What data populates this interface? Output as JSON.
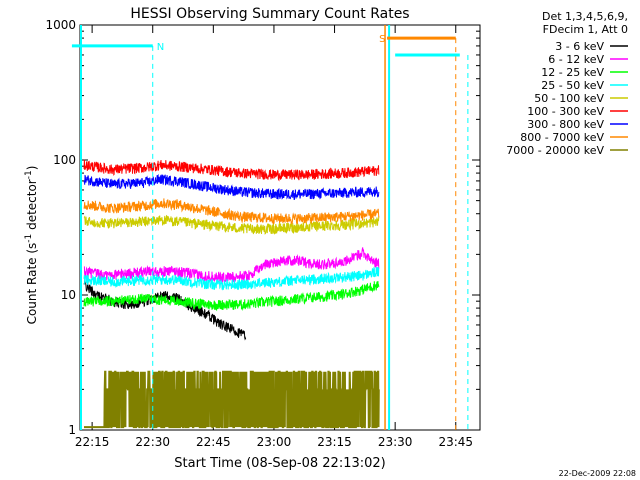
{
  "chart_data": {
    "type": "line",
    "title": "HESSI Observing Summary Count Rates",
    "xlabel": "Start Time (08-Sep-08 22:13:02)",
    "ylabel_main": "Count Rate (s",
    "ylabel_sup1": "-1",
    "ylabel_mid": " detector",
    "ylabel_sup2": "-1",
    "ylabel_end": ")",
    "y_scale": "log",
    "ylim": [
      1,
      1000
    ],
    "xlim_minutes": [
      10,
      60
    ],
    "x_ticks": [
      {
        "label": "22:15",
        "minute": 15
      },
      {
        "label": "22:30",
        "minute": 30
      },
      {
        "label": "22:45",
        "minute": 45
      },
      {
        "label": "23:00",
        "minute": 60
      },
      {
        "label": "23:15",
        "minute": 75
      },
      {
        "label": "23:30",
        "minute": 90
      },
      {
        "label": "23:45",
        "minute": 105
      }
    ],
    "y_ticks": [
      {
        "label": "1",
        "value": 1
      },
      {
        "label": "10",
        "value": 10
      },
      {
        "label": "100",
        "value": 100
      },
      {
        "label": "1000",
        "value": 1000
      }
    ],
    "legend_header": [
      "Det 1,3,4,5,6,9,",
      "FDecim 1, Att 0"
    ],
    "series": [
      {
        "name": "3 - 6 keV",
        "color": "#000000",
        "x": [
          13,
          16,
          20,
          24,
          28,
          32,
          36,
          40,
          44,
          47,
          50,
          53
        ],
        "y": [
          12,
          10,
          9,
          8.5,
          9,
          10,
          9.5,
          8,
          7,
          6,
          5.5,
          5
        ]
      },
      {
        "name": "6 - 12 keV",
        "color": "#ff00ff",
        "x": [
          13,
          18,
          24,
          30,
          36,
          42,
          48,
          54,
          58,
          62,
          66,
          70,
          74,
          78,
          80,
          82,
          84,
          86
        ],
        "y": [
          15,
          14,
          14.5,
          15,
          15,
          14,
          13.5,
          14,
          17,
          18,
          18,
          17,
          17,
          18,
          19,
          21,
          18,
          17
        ]
      },
      {
        "name": "12 - 25 keV",
        "color": "#00ff00",
        "x": [
          13,
          20,
          28,
          36,
          44,
          52,
          60,
          68,
          76,
          82,
          86
        ],
        "y": [
          9,
          9,
          9.5,
          9,
          8.5,
          8.5,
          9,
          9.5,
          10,
          11,
          12
        ]
      },
      {
        "name": "25 - 50 keV",
        "color": "#00ffff",
        "x": [
          13,
          20,
          28,
          36,
          44,
          52,
          60,
          68,
          76,
          82,
          86
        ],
        "y": [
          13,
          12.5,
          13,
          13,
          12,
          12,
          12.5,
          13,
          13.5,
          14,
          15
        ]
      },
      {
        "name": "50 - 100 keV",
        "color": "#cccc00",
        "x": [
          13,
          20,
          28,
          32,
          36,
          44,
          52,
          60,
          68,
          76,
          82,
          86
        ],
        "y": [
          35,
          34,
          35,
          36,
          35,
          33,
          31,
          31,
          32,
          33,
          34,
          35
        ]
      },
      {
        "name": "100 - 300 keV",
        "color": "#ff0000",
        "x": [
          13,
          20,
          28,
          32,
          36,
          44,
          52,
          60,
          68,
          76,
          82,
          86
        ],
        "y": [
          92,
          85,
          88,
          92,
          90,
          85,
          80,
          78,
          78,
          80,
          82,
          84
        ]
      },
      {
        "name": "300 - 800 keV",
        "color": "#0000ff",
        "x": [
          13,
          20,
          28,
          32,
          36,
          44,
          52,
          60,
          68,
          76,
          82,
          86
        ],
        "y": [
          72,
          66,
          68,
          72,
          70,
          63,
          58,
          56,
          56,
          57,
          58,
          59
        ]
      },
      {
        "name": "800 - 7000 keV",
        "color": "#ff8800",
        "x": [
          13,
          20,
          28,
          32,
          36,
          44,
          52,
          60,
          68,
          76,
          82,
          86
        ],
        "y": [
          47,
          44,
          46,
          48,
          47,
          42,
          38,
          37,
          37,
          38,
          39,
          40
        ]
      },
      {
        "name": "7000 - 20000 keV",
        "color": "#808000",
        "x": [
          13,
          30,
          40,
          50,
          60,
          70,
          80,
          86
        ],
        "y": [
          1,
          2,
          2.5,
          2,
          1.5,
          1.5,
          2.5,
          2
        ]
      }
    ],
    "flags": [
      {
        "label": "N",
        "color": "#00ffff",
        "x_start": 10,
        "x_end": 30,
        "y": 700,
        "dashed_x": 30
      },
      {
        "label": "S",
        "color": "#ff8800",
        "x_start": 88,
        "x_end": 105,
        "y": 800,
        "dashed_x": 105
      }
    ],
    "annotation_date": "22-Dec-2009 22:08"
  }
}
